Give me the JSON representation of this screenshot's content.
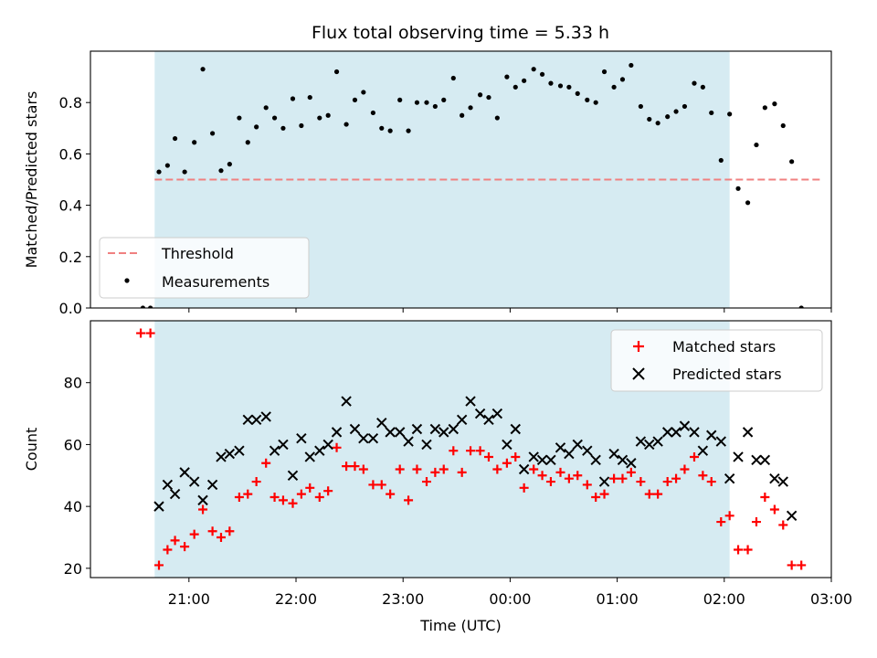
{
  "chart_data": [
    {
      "type": "scatter",
      "title": "Flux total observing time = 5.33 h",
      "ylabel": "Matched/Predicted stars",
      "xlabel": "",
      "ylim": [
        0,
        1.0
      ],
      "yticks": [
        0.0,
        0.2,
        0.4,
        0.6,
        0.8
      ],
      "ytick_labels": [
        "0.0",
        "0.2",
        "0.4",
        "0.6",
        "0.8"
      ],
      "grid": false,
      "legend_position": "lower-left",
      "shaded_interval": {
        "x_start": 20.68,
        "x_end": 26.05,
        "color": "#add8e6"
      },
      "threshold": {
        "name": "Threshold",
        "y": 0.5,
        "x_start": 20.68,
        "x_end": 26.9,
        "color": "#f08080"
      },
      "series": [
        {
          "name": "Measurements",
          "color": "#000000",
          "marker": "dot",
          "points": [
            [
              20.57,
              0.0
            ],
            [
              20.64,
              0.0
            ],
            [
              20.72,
              0.53
            ],
            [
              20.8,
              0.555
            ],
            [
              20.87,
              0.66
            ],
            [
              20.96,
              0.53
            ],
            [
              21.05,
              0.645
            ],
            [
              21.13,
              0.93
            ],
            [
              21.22,
              0.68
            ],
            [
              21.3,
              0.535
            ],
            [
              21.38,
              0.56
            ],
            [
              21.47,
              0.74
            ],
            [
              21.55,
              0.645
            ],
            [
              21.63,
              0.705
            ],
            [
              21.72,
              0.78
            ],
            [
              21.8,
              0.74
            ],
            [
              21.88,
              0.7
            ],
            [
              21.97,
              0.815
            ],
            [
              22.05,
              0.71
            ],
            [
              22.13,
              0.82
            ],
            [
              22.22,
              0.74
            ],
            [
              22.3,
              0.75
            ],
            [
              22.38,
              0.92
            ],
            [
              22.47,
              0.715
            ],
            [
              22.55,
              0.81
            ],
            [
              22.63,
              0.84
            ],
            [
              22.72,
              0.76
            ],
            [
              22.8,
              0.7
            ],
            [
              22.88,
              0.69
            ],
            [
              22.97,
              0.81
            ],
            [
              23.05,
              0.69
            ],
            [
              23.13,
              0.8
            ],
            [
              23.22,
              0.8
            ],
            [
              23.3,
              0.785
            ],
            [
              23.38,
              0.81
            ],
            [
              23.47,
              0.895
            ],
            [
              23.55,
              0.75
            ],
            [
              23.63,
              0.78
            ],
            [
              23.72,
              0.83
            ],
            [
              23.8,
              0.82
            ],
            [
              23.88,
              0.74
            ],
            [
              23.97,
              0.9
            ],
            [
              24.05,
              0.86
            ],
            [
              24.13,
              0.885
            ],
            [
              24.22,
              0.93
            ],
            [
              24.3,
              0.91
            ],
            [
              24.38,
              0.875
            ],
            [
              24.47,
              0.865
            ],
            [
              24.55,
              0.86
            ],
            [
              24.63,
              0.835
            ],
            [
              24.72,
              0.81
            ],
            [
              24.8,
              0.8
            ],
            [
              24.88,
              0.92
            ],
            [
              24.97,
              0.86
            ],
            [
              25.05,
              0.89
            ],
            [
              25.13,
              0.945
            ],
            [
              25.22,
              0.785
            ],
            [
              25.3,
              0.735
            ],
            [
              25.38,
              0.72
            ],
            [
              25.47,
              0.745
            ],
            [
              25.55,
              0.765
            ],
            [
              25.63,
              0.785
            ],
            [
              25.72,
              0.875
            ],
            [
              25.8,
              0.86
            ],
            [
              25.88,
              0.76
            ],
            [
              25.97,
              0.575
            ],
            [
              26.05,
              0.755
            ],
            [
              26.13,
              0.465
            ],
            [
              26.22,
              0.41
            ],
            [
              26.3,
              0.635
            ],
            [
              26.38,
              0.78
            ],
            [
              26.47,
              0.795
            ],
            [
              26.55,
              0.71
            ],
            [
              26.63,
              0.57
            ],
            [
              26.72,
              0.0
            ]
          ]
        }
      ]
    },
    {
      "type": "scatter",
      "title": "",
      "ylabel": "Count",
      "xlabel": "Time (UTC)",
      "ylim": [
        17,
        100
      ],
      "yticks": [
        20,
        40,
        60,
        80
      ],
      "ytick_labels": [
        "20",
        "40",
        "60",
        "80"
      ],
      "xlim": [
        20.08,
        27.0
      ],
      "xticks": [
        21,
        22,
        23,
        24,
        25,
        26,
        27
      ],
      "xtick_labels": [
        "21:00",
        "22:00",
        "23:00",
        "00:00",
        "01:00",
        "02:00",
        "03:00"
      ],
      "grid": false,
      "legend_position": "top-right",
      "shaded_interval": {
        "x_start": 20.68,
        "x_end": 26.05,
        "color": "#add8e6"
      },
      "series": [
        {
          "name": "Matched stars",
          "color": "#ff0000",
          "marker": "plus",
          "points": [
            [
              20.55,
              96
            ],
            [
              20.64,
              96
            ],
            [
              20.72,
              21
            ],
            [
              20.8,
              26
            ],
            [
              20.87,
              29
            ],
            [
              20.96,
              27
            ],
            [
              21.05,
              31
            ],
            [
              21.13,
              39
            ],
            [
              21.22,
              32
            ],
            [
              21.3,
              30
            ],
            [
              21.38,
              32
            ],
            [
              21.47,
              43
            ],
            [
              21.55,
              44
            ],
            [
              21.63,
              48
            ],
            [
              21.72,
              54
            ],
            [
              21.8,
              43
            ],
            [
              21.88,
              42
            ],
            [
              21.97,
              41
            ],
            [
              22.05,
              44
            ],
            [
              22.13,
              46
            ],
            [
              22.22,
              43
            ],
            [
              22.3,
              45
            ],
            [
              22.38,
              59
            ],
            [
              22.47,
              53
            ],
            [
              22.55,
              53
            ],
            [
              22.63,
              52
            ],
            [
              22.72,
              47
            ],
            [
              22.8,
              47
            ],
            [
              22.88,
              44
            ],
            [
              22.97,
              52
            ],
            [
              23.05,
              42
            ],
            [
              23.13,
              52
            ],
            [
              23.22,
              48
            ],
            [
              23.3,
              51
            ],
            [
              23.38,
              52
            ],
            [
              23.47,
              58
            ],
            [
              23.55,
              51
            ],
            [
              23.63,
              58
            ],
            [
              23.72,
              58
            ],
            [
              23.8,
              56
            ],
            [
              23.88,
              52
            ],
            [
              23.97,
              54
            ],
            [
              24.05,
              56
            ],
            [
              24.13,
              46
            ],
            [
              24.22,
              52
            ],
            [
              24.3,
              50
            ],
            [
              24.38,
              48
            ],
            [
              24.47,
              51
            ],
            [
              24.55,
              49
            ],
            [
              24.63,
              50
            ],
            [
              24.72,
              47
            ],
            [
              24.8,
              43
            ],
            [
              24.88,
              44
            ],
            [
              24.97,
              49
            ],
            [
              25.05,
              49
            ],
            [
              25.13,
              51
            ],
            [
              25.22,
              48
            ],
            [
              25.3,
              44
            ],
            [
              25.38,
              44
            ],
            [
              25.47,
              48
            ],
            [
              25.55,
              49
            ],
            [
              25.63,
              52
            ],
            [
              25.72,
              56
            ],
            [
              25.8,
              50
            ],
            [
              25.88,
              48
            ],
            [
              25.97,
              35
            ],
            [
              26.05,
              37
            ],
            [
              26.13,
              26
            ],
            [
              26.22,
              26
            ],
            [
              26.3,
              35
            ],
            [
              26.38,
              43
            ],
            [
              26.47,
              39
            ],
            [
              26.55,
              34
            ],
            [
              26.63,
              21
            ],
            [
              26.72,
              21
            ]
          ]
        },
        {
          "name": "Predicted stars",
          "color": "#000000",
          "marker": "x",
          "points": [
            [
              20.72,
              40
            ],
            [
              20.8,
              47
            ],
            [
              20.87,
              44
            ],
            [
              20.96,
              51
            ],
            [
              21.05,
              48
            ],
            [
              21.13,
              42
            ],
            [
              21.22,
              47
            ],
            [
              21.3,
              56
            ],
            [
              21.38,
              57
            ],
            [
              21.47,
              58
            ],
            [
              21.55,
              68
            ],
            [
              21.63,
              68
            ],
            [
              21.72,
              69
            ],
            [
              21.8,
              58
            ],
            [
              21.88,
              60
            ],
            [
              21.97,
              50
            ],
            [
              22.05,
              62
            ],
            [
              22.13,
              56
            ],
            [
              22.22,
              58
            ],
            [
              22.3,
              60
            ],
            [
              22.38,
              64
            ],
            [
              22.47,
              74
            ],
            [
              22.55,
              65
            ],
            [
              22.63,
              62
            ],
            [
              22.72,
              62
            ],
            [
              22.8,
              67
            ],
            [
              22.88,
              64
            ],
            [
              22.97,
              64
            ],
            [
              23.05,
              61
            ],
            [
              23.13,
              65
            ],
            [
              23.22,
              60
            ],
            [
              23.3,
              65
            ],
            [
              23.38,
              64
            ],
            [
              23.47,
              65
            ],
            [
              23.55,
              68
            ],
            [
              23.63,
              74
            ],
            [
              23.72,
              70
            ],
            [
              23.8,
              68
            ],
            [
              23.88,
              70
            ],
            [
              23.97,
              60
            ],
            [
              24.05,
              65
            ],
            [
              24.13,
              52
            ],
            [
              24.22,
              56
            ],
            [
              24.3,
              55
            ],
            [
              24.38,
              55
            ],
            [
              24.47,
              59
            ],
            [
              24.55,
              57
            ],
            [
              24.63,
              60
            ],
            [
              24.72,
              58
            ],
            [
              24.8,
              55
            ],
            [
              24.88,
              48
            ],
            [
              24.97,
              57
            ],
            [
              25.05,
              55
            ],
            [
              25.13,
              54
            ],
            [
              25.22,
              61
            ],
            [
              25.3,
              60
            ],
            [
              25.38,
              61
            ],
            [
              25.47,
              64
            ],
            [
              25.55,
              64
            ],
            [
              25.63,
              66
            ],
            [
              25.72,
              64
            ],
            [
              25.8,
              58
            ],
            [
              25.88,
              63
            ],
            [
              25.97,
              61
            ],
            [
              26.05,
              49
            ],
            [
              26.13,
              56
            ],
            [
              26.22,
              64
            ],
            [
              26.3,
              55
            ],
            [
              26.38,
              55
            ],
            [
              26.47,
              49
            ],
            [
              26.55,
              48
            ],
            [
              26.63,
              37
            ]
          ]
        }
      ]
    }
  ]
}
